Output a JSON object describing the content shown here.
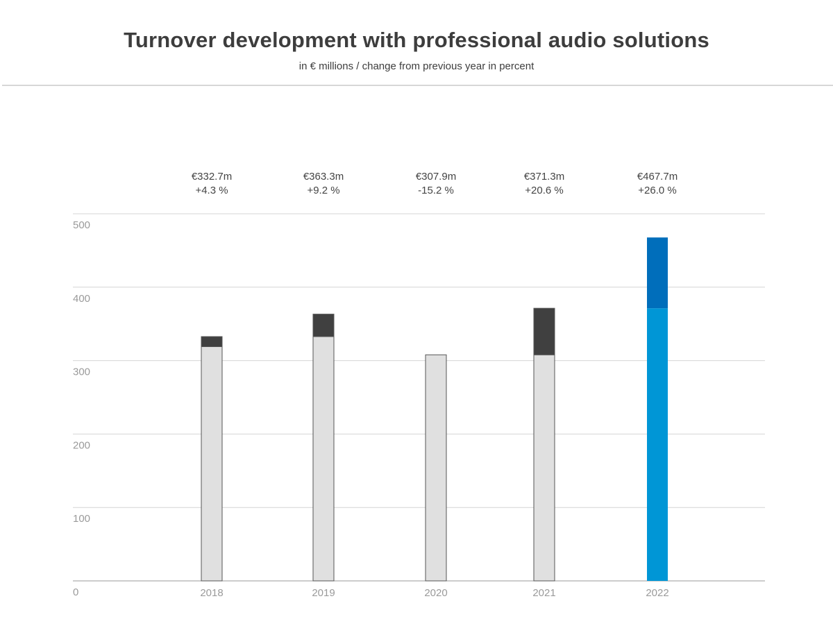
{
  "chart_data": {
    "type": "bar",
    "stacked": true,
    "title": "Turnover development with professional audio solutions",
    "subtitle": "in € millions / change from previous year in percent",
    "xlabel": "",
    "ylabel": "",
    "categories": [
      "2018",
      "2019",
      "2020",
      "2021",
      "2022"
    ],
    "values": [
      332.7,
      363.3,
      307.9,
      371.3,
      467.7
    ],
    "previous_year_values": [
      319.0,
      332.7,
      307.9,
      307.9,
      371.3
    ],
    "value_labels": [
      "€332.7m",
      "€363.3m",
      "€307.9m",
      "€371.3m",
      "€467.7m"
    ],
    "change_labels": [
      "+4.3 %",
      "+9.2 %",
      "-15.2 %",
      "+20.6 %",
      "+26.0 %"
    ],
    "ylim": [
      0,
      500
    ],
    "yticks": [
      "0",
      "100",
      "200",
      "300",
      "400",
      "500"
    ],
    "grid": true,
    "colors": {
      "base": "#e0e0e0",
      "increase": "#404040",
      "outline": "#555555",
      "highlight_base": "#0096d6",
      "highlight_increase": "#006ebb",
      "grid": "#d4d4d4"
    },
    "highlight_category": "2022"
  }
}
